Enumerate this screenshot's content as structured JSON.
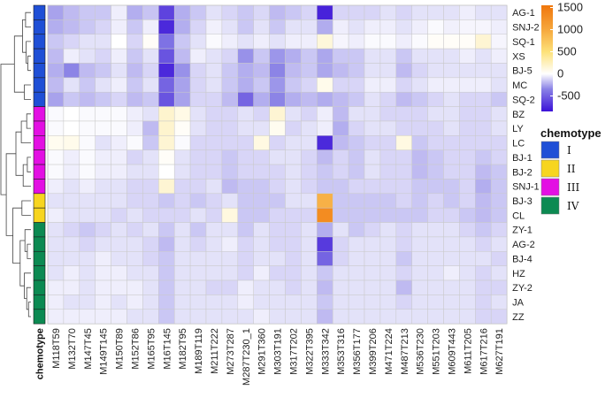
{
  "chart_data": {
    "type": "heatmap",
    "rows": [
      "AG-1",
      "SNJ-2",
      "SQ-1",
      "XS",
      "BJ-5",
      "MC",
      "SQ-2",
      "BZ",
      "LY",
      "LC",
      "BJ-1",
      "BJ-2",
      "SNJ-1",
      "BJ-3",
      "CL",
      "ZY-1",
      "AG-2",
      "BJ-4",
      "HZ",
      "ZY-2",
      "JA",
      "ZZ"
    ],
    "columns": [
      "M118T59",
      "M132T70",
      "M147T45",
      "M149T145",
      "M150T89",
      "M152T86",
      "M165T95",
      "M16T145",
      "M182T95",
      "M189T119",
      "M211T222",
      "M273T287",
      "M287T230_1",
      "M291T360",
      "M303T191",
      "M317T202",
      "M322T395",
      "M333T342",
      "M353T316",
      "M356T177",
      "M399T206",
      "M471T224",
      "M487T213",
      "M536T230",
      "M551T203",
      "M609T443",
      "M611T205",
      "M617T216",
      "M627T191"
    ],
    "row_annotation_label": "chemotype",
    "row_chemotype": [
      "I",
      "I",
      "I",
      "I",
      "I",
      "I",
      "I",
      "III",
      "III",
      "III",
      "III",
      "III",
      "III",
      "II",
      "II",
      "IV",
      "IV",
      "IV",
      "IV",
      "IV",
      "IV",
      "IV"
    ],
    "legend_title": "chemotype",
    "legend": [
      {
        "label": "I",
        "color": "#1f4fd6"
      },
      {
        "label": "II",
        "color": "#f7d51f"
      },
      {
        "label": "III",
        "color": "#e30fe3"
      },
      {
        "label": "IV",
        "color": "#0c8a52"
      }
    ],
    "colorbar": {
      "ticks": [
        1500,
        1000,
        500,
        0,
        -500
      ],
      "tick_labels": [
        "1500",
        "1000",
        "500",
        "0",
        "-500"
      ],
      "min": -850,
      "max": 1550
    },
    "values": [
      [
        -380,
        -280,
        -230,
        -230,
        -70,
        -330,
        -240,
        -700,
        -330,
        -230,
        -120,
        -170,
        -230,
        -160,
        -280,
        -230,
        -170,
        -800,
        -170,
        -170,
        -170,
        -120,
        -170,
        -120,
        -120,
        -120,
        -70,
        -120,
        -120
      ],
      [
        -330,
        -280,
        -230,
        -170,
        -70,
        -230,
        -70,
        -780,
        -330,
        -170,
        -60,
        -120,
        -230,
        -120,
        -230,
        -120,
        -120,
        -340,
        -70,
        -120,
        -70,
        -70,
        -120,
        -70,
        -20,
        -60,
        -40,
        -40,
        -70
      ],
      [
        -230,
        -170,
        -120,
        -120,
        0,
        -170,
        30,
        -560,
        -230,
        -120,
        -20,
        -70,
        -120,
        -70,
        -120,
        -70,
        -70,
        150,
        -40,
        -70,
        -20,
        -20,
        -70,
        -20,
        30,
        30,
        30,
        180,
        -40
      ],
      [
        -280,
        -70,
        -120,
        -170,
        -70,
        -230,
        -120,
        -650,
        -280,
        -70,
        -120,
        -170,
        -450,
        -230,
        -430,
        -330,
        -230,
        -360,
        -230,
        -230,
        -120,
        -120,
        -230,
        -120,
        -120,
        -120,
        -70,
        -120,
        -70
      ],
      [
        -330,
        -500,
        -280,
        -230,
        -120,
        -280,
        -170,
        -780,
        -450,
        -170,
        -120,
        -230,
        -330,
        -280,
        -500,
        -280,
        -230,
        -360,
        -280,
        -230,
        -120,
        -120,
        -280,
        -170,
        -120,
        -120,
        -120,
        -120,
        -120
      ],
      [
        -280,
        -120,
        -230,
        -120,
        -70,
        -230,
        -120,
        -600,
        -380,
        -170,
        -120,
        -230,
        -330,
        -230,
        -430,
        -230,
        -170,
        80,
        -170,
        -170,
        -70,
        -70,
        -170,
        -120,
        -70,
        -70,
        -70,
        -70,
        -120
      ],
      [
        -380,
        -230,
        -280,
        -230,
        -170,
        -280,
        -230,
        -650,
        -380,
        -170,
        -170,
        -280,
        -600,
        -330,
        -500,
        -330,
        -280,
        -340,
        -280,
        -230,
        -120,
        -170,
        -280,
        -230,
        -170,
        -120,
        -170,
        -170,
        -230
      ],
      [
        -20,
        0,
        -20,
        -20,
        -20,
        -70,
        -120,
        200,
        100,
        -120,
        -170,
        -170,
        -120,
        -170,
        180,
        -120,
        -170,
        -70,
        -280,
        -120,
        -120,
        -170,
        -170,
        -170,
        -120,
        -120,
        -170,
        -170,
        -120
      ],
      [
        -20,
        0,
        -20,
        -20,
        -20,
        -70,
        -280,
        200,
        30,
        -120,
        -170,
        -170,
        -120,
        -120,
        60,
        -170,
        -120,
        -70,
        -330,
        -170,
        -120,
        -120,
        -170,
        -170,
        -170,
        -120,
        -170,
        -170,
        -120
      ],
      [
        60,
        80,
        -20,
        -120,
        -70,
        -20,
        -230,
        180,
        -20,
        -170,
        -170,
        -170,
        -170,
        120,
        -170,
        -120,
        -120,
        -780,
        -280,
        -230,
        -170,
        -170,
        120,
        -230,
        -170,
        -170,
        -170,
        -170,
        -170
      ],
      [
        -20,
        -70,
        -20,
        -70,
        -70,
        -170,
        -120,
        30,
        -120,
        -170,
        -170,
        -230,
        -170,
        -170,
        -120,
        -120,
        -170,
        -280,
        -170,
        -230,
        -120,
        -170,
        -170,
        -280,
        -230,
        -170,
        -170,
        -230,
        -170
      ],
      [
        -20,
        -70,
        -20,
        -70,
        -70,
        -120,
        -120,
        0,
        -120,
        -170,
        -170,
        -230,
        -170,
        -170,
        -170,
        -120,
        -170,
        -230,
        -170,
        -230,
        -120,
        -170,
        -170,
        -280,
        -230,
        -170,
        -170,
        -280,
        -230
      ],
      [
        -70,
        -120,
        -70,
        -120,
        -120,
        -170,
        -170,
        180,
        -170,
        -170,
        -120,
        -280,
        -230,
        -230,
        -170,
        -120,
        -170,
        -230,
        -230,
        -170,
        -170,
        -170,
        -170,
        -230,
        -230,
        -230,
        -170,
        -330,
        -230
      ],
      [
        -120,
        -120,
        -120,
        -120,
        -120,
        -170,
        -170,
        -230,
        -170,
        -230,
        -170,
        -120,
        -230,
        -230,
        -230,
        -120,
        -120,
        1000,
        -230,
        -230,
        -230,
        -230,
        -170,
        -230,
        -170,
        -230,
        -170,
        -280,
        -230
      ],
      [
        -70,
        -120,
        -120,
        -120,
        -170,
        -120,
        -170,
        -170,
        -170,
        -120,
        -170,
        130,
        -230,
        -230,
        -170,
        -170,
        -170,
        1350,
        -230,
        -230,
        -230,
        -230,
        -230,
        -230,
        -170,
        -170,
        -230,
        -280,
        -230
      ],
      [
        -120,
        -170,
        -230,
        -170,
        -120,
        -170,
        -120,
        -230,
        -120,
        -230,
        -120,
        -120,
        -230,
        -120,
        -170,
        -170,
        -120,
        -330,
        -120,
        -230,
        -170,
        -120,
        -170,
        -120,
        -120,
        -120,
        -170,
        -230,
        -170
      ],
      [
        -120,
        -120,
        -170,
        -120,
        -120,
        -120,
        -170,
        -280,
        -120,
        -170,
        -120,
        -70,
        -170,
        -120,
        -170,
        -170,
        -120,
        -730,
        -170,
        -120,
        -120,
        -120,
        -170,
        -120,
        -120,
        -120,
        -120,
        -170,
        -120
      ],
      [
        -120,
        -120,
        -120,
        -70,
        -120,
        -120,
        -170,
        -230,
        -120,
        -120,
        -120,
        -120,
        -170,
        -120,
        -120,
        -170,
        -120,
        -600,
        -170,
        -120,
        -120,
        -120,
        -230,
        -120,
        -120,
        -120,
        -120,
        -120,
        -170
      ],
      [
        -120,
        -70,
        -120,
        -70,
        -70,
        -120,
        -120,
        -230,
        -120,
        -120,
        -120,
        -120,
        -170,
        -70,
        -170,
        -170,
        -120,
        -230,
        -120,
        -120,
        -120,
        -120,
        -170,
        -120,
        -120,
        -70,
        -120,
        -170,
        -120
      ],
      [
        -70,
        -70,
        -120,
        -70,
        -70,
        -70,
        -120,
        -230,
        -120,
        -120,
        -170,
        -170,
        -70,
        -120,
        -120,
        -170,
        -120,
        -280,
        -120,
        -120,
        -120,
        -120,
        -280,
        -120,
        -120,
        -120,
        -120,
        -170,
        -170
      ],
      [
        -70,
        -120,
        -120,
        -70,
        -120,
        -70,
        -120,
        -230,
        -120,
        -120,
        -120,
        -120,
        -70,
        -120,
        -120,
        -120,
        -120,
        -230,
        -120,
        -120,
        -120,
        -120,
        -170,
        -120,
        -120,
        -120,
        -120,
        -170,
        -120
      ],
      [
        -70,
        -70,
        -70,
        -70,
        -70,
        -120,
        -120,
        -230,
        -120,
        -120,
        -120,
        -120,
        -120,
        -70,
        -120,
        -120,
        -120,
        -280,
        -120,
        -120,
        -120,
        -120,
        -120,
        -120,
        -120,
        -120,
        -120,
        -170,
        -170
      ]
    ]
  }
}
